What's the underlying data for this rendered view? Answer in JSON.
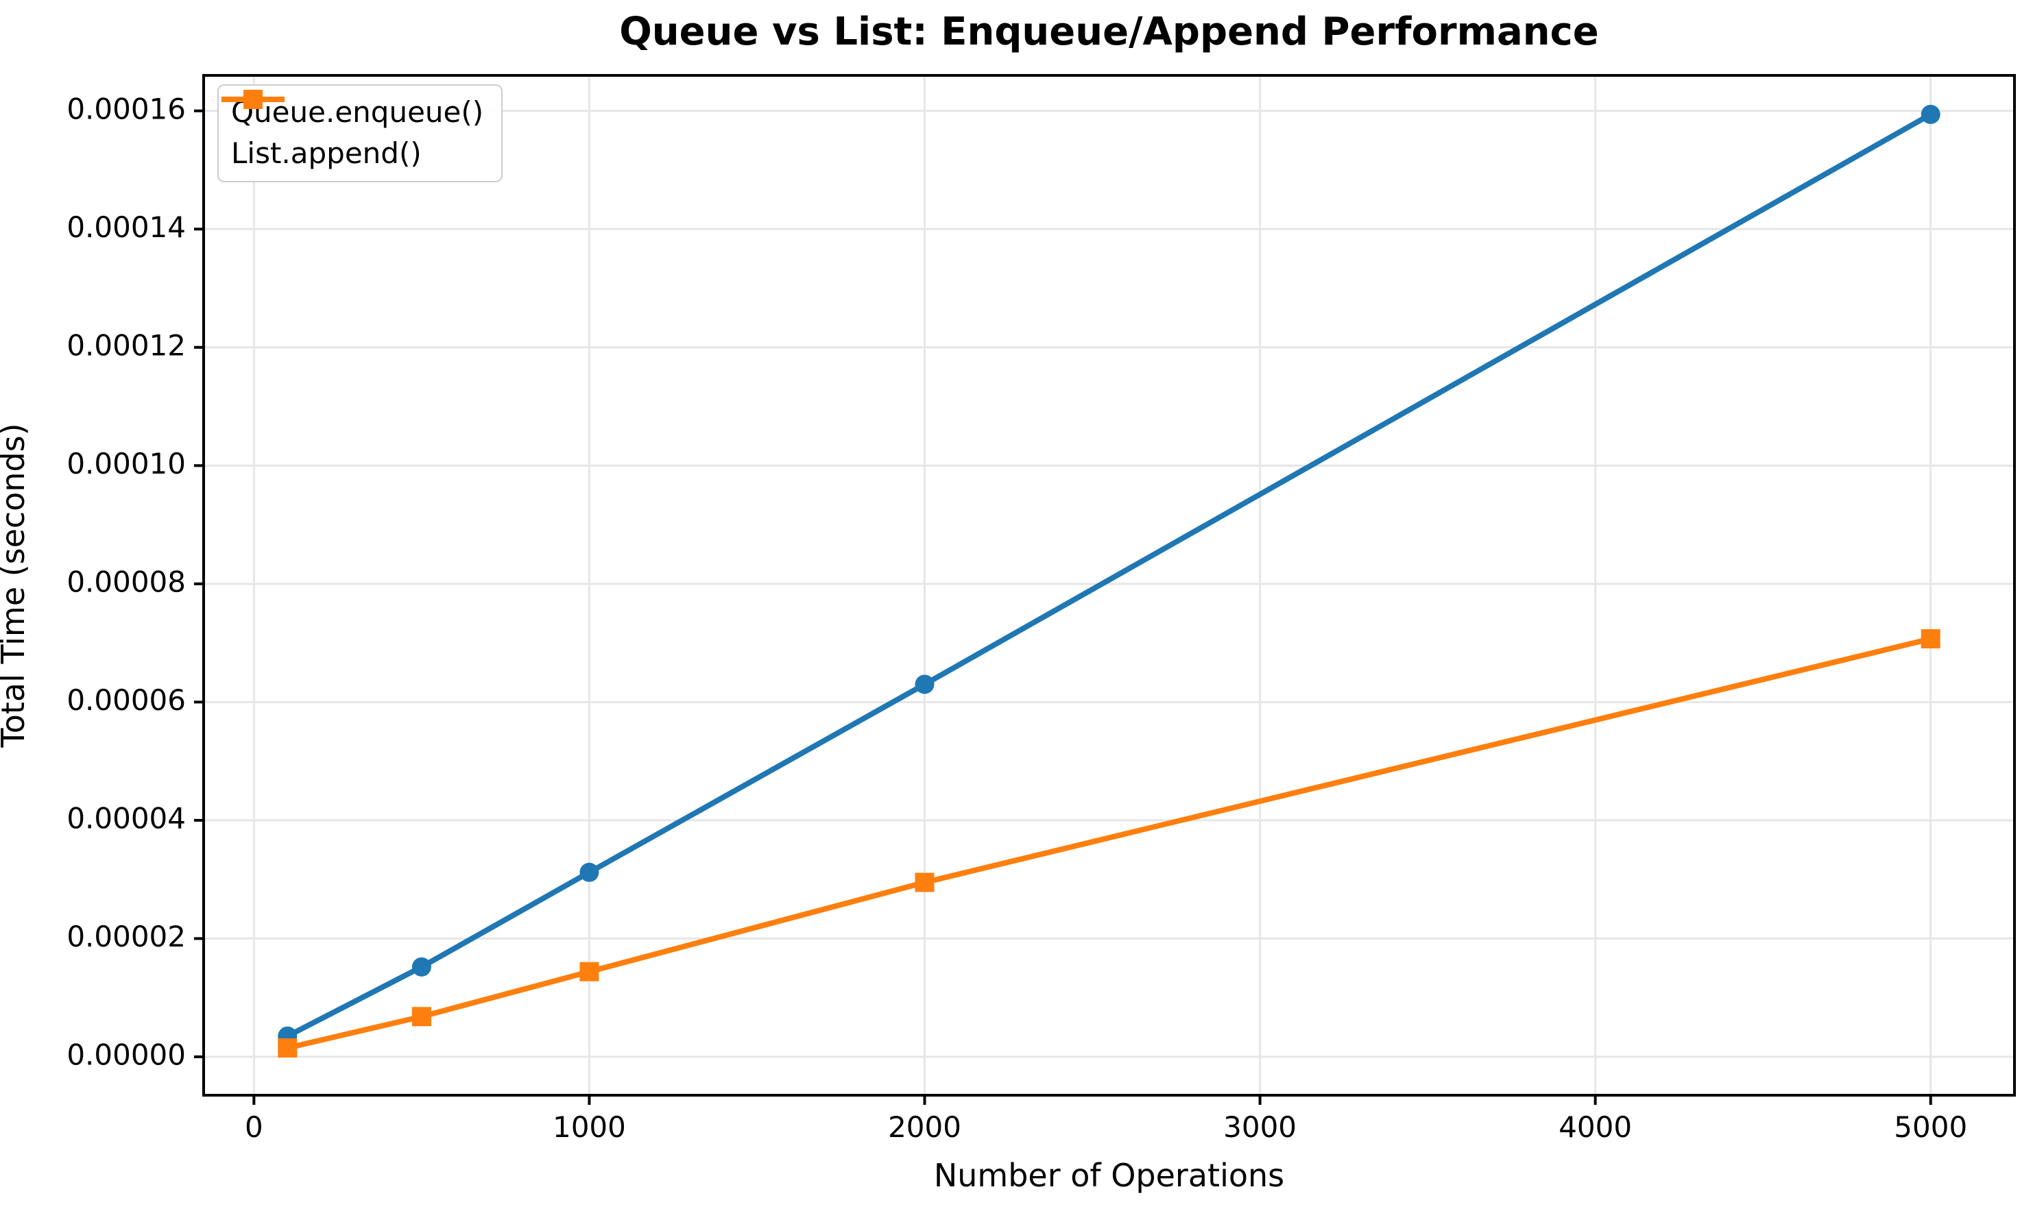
{
  "title": "Queue vs List: Enqueue/Append Performance",
  "chart_data": {
    "type": "line",
    "title": "Queue vs List: Enqueue/Append Performance",
    "xlabel": "Number of Operations",
    "ylabel": "Total Time (seconds)",
    "x": [
      100,
      500,
      1000,
      2000,
      5000
    ],
    "series": [
      {
        "name": "Queue.enqueue()",
        "color": "#1f77b4",
        "marker": "circle",
        "values": [
          3.5e-06,
          1.52e-05,
          3.12e-05,
          6.3e-05,
          0.0001594
        ]
      },
      {
        "name": "List.append()",
        "color": "#ff7f0e",
        "marker": "square",
        "values": [
          1.5e-06,
          6.8e-06,
          1.44e-05,
          2.95e-05,
          7.07e-05
        ]
      }
    ],
    "xlim": [
      -150,
      5250
    ],
    "ylim": [
      -6.5e-06,
      0.000166
    ],
    "xticks": [
      0,
      1000,
      2000,
      3000,
      4000,
      5000
    ],
    "xtick_labels": [
      "0",
      "1000",
      "2000",
      "3000",
      "4000",
      "5000"
    ],
    "ytick_values": [
      0,
      2e-05,
      4e-05,
      6e-05,
      8e-05,
      0.0001,
      0.00012,
      0.00014,
      0.00016
    ],
    "ytick_labels": [
      "0.00000",
      "0.00002",
      "0.00004",
      "0.00006",
      "0.00008",
      "0.00010",
      "0.00012",
      "0.00014",
      "0.00016"
    ],
    "grid": true,
    "grid_color": "#e6e6e6",
    "spine_color": "#000000",
    "background_color": "#ffffff",
    "legend_position": "upper left"
  }
}
